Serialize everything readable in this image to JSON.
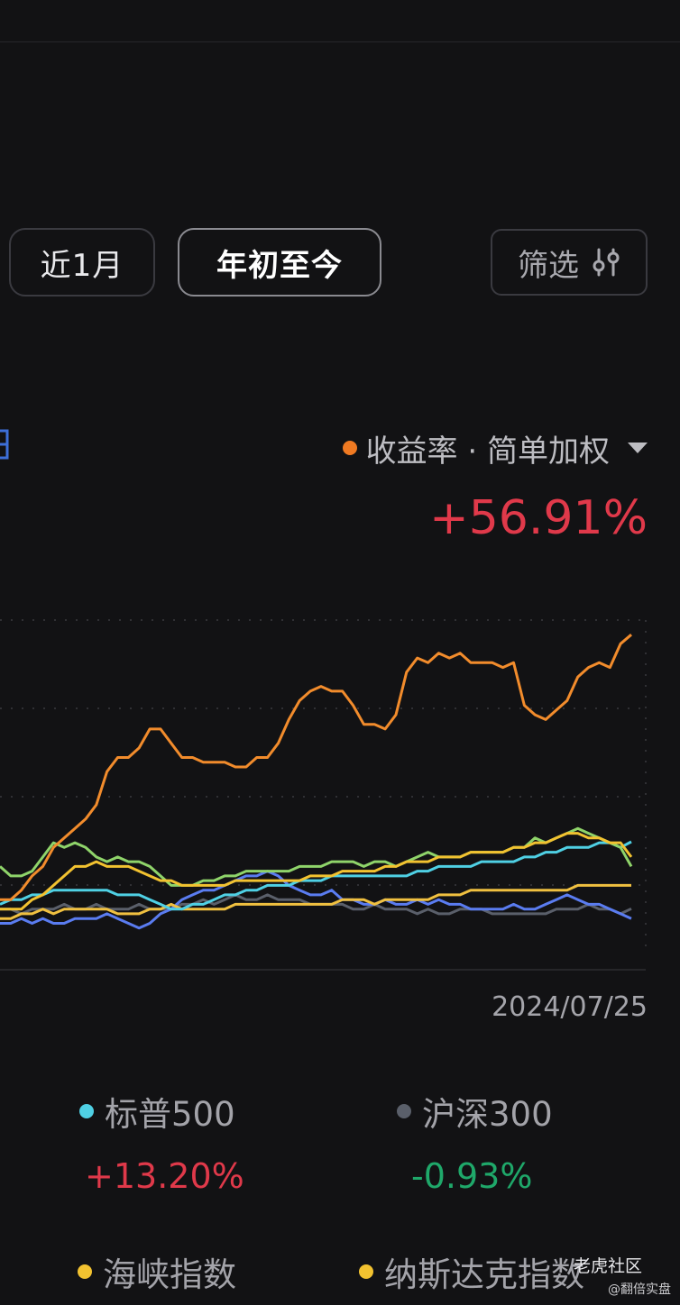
{
  "tabs": [
    {
      "label": "近1月",
      "active": false
    },
    {
      "label": "年初至今",
      "active": true
    }
  ],
  "filter_label": "筛选",
  "metric_selector": {
    "label": "收益率 · 简单加权",
    "dot_color": "#f07a22"
  },
  "main_return": "+56.91%",
  "chart_data": {
    "type": "line",
    "end_date": "2024/07/25",
    "grid": true,
    "series": [
      {
        "color": "#f28c2c",
        "values": [
          1,
          1,
          3,
          6,
          8,
          12,
          14,
          16,
          18,
          21,
          28,
          31,
          31,
          33,
          37,
          37,
          34,
          31,
          31,
          30,
          30,
          30,
          29,
          29,
          31,
          31,
          34,
          39,
          43,
          45,
          46,
          45,
          45,
          42,
          38,
          38,
          37,
          40,
          49,
          52,
          51,
          53,
          52,
          53,
          51,
          51,
          51,
          50,
          51,
          42,
          40,
          39,
          41,
          43,
          48,
          50,
          51,
          50,
          55,
          56.91
        ]
      },
      {
        "color": "#8fd46a",
        "values": [
          8,
          6,
          6,
          7,
          10,
          13,
          12,
          13,
          12,
          10,
          9,
          10,
          9,
          9,
          8,
          6,
          4,
          4,
          4,
          5,
          5,
          6,
          6,
          7,
          7,
          7,
          7,
          7,
          8,
          8,
          8,
          9,
          9,
          9,
          8,
          9,
          9,
          8,
          9,
          10,
          11,
          10,
          10,
          10,
          11,
          11,
          11,
          11,
          12,
          12,
          14,
          13,
          14,
          15,
          16,
          15,
          14,
          13,
          12,
          8
        ]
      },
      {
        "color": "#4fd0e4",
        "values": [
          0,
          1,
          1,
          2,
          2,
          3,
          3,
          3,
          3,
          3,
          3,
          2,
          2,
          2,
          1,
          0,
          -1,
          -1,
          0,
          0,
          1,
          2,
          2,
          3,
          3,
          4,
          4,
          4,
          5,
          5,
          5,
          6,
          6,
          6,
          6,
          6,
          6,
          6,
          6,
          7,
          7,
          8,
          8,
          8,
          8,
          9,
          9,
          9,
          9,
          10,
          10,
          11,
          11,
          12,
          12,
          12,
          13,
          13,
          12,
          13.2
        ]
      },
      {
        "color": "#5a7cf0",
        "values": [
          -4,
          -4,
          -3,
          -4,
          -3,
          -4,
          -4,
          -3,
          -3,
          -3,
          -2,
          -3,
          -4,
          -5,
          -4,
          -2,
          -1,
          1,
          2,
          3,
          3,
          4,
          5,
          6,
          6,
          7,
          6,
          4,
          3,
          2,
          2,
          3,
          1,
          1,
          0,
          0,
          1,
          0,
          0,
          1,
          0,
          1,
          0,
          0,
          -1,
          -1,
          -1,
          -1,
          0,
          -1,
          -1,
          0,
          1,
          2,
          1,
          0,
          0,
          -1,
          -2,
          -3
        ]
      },
      {
        "color": "#5a5f6a",
        "values": [
          -1,
          -1,
          -2,
          -1,
          -1,
          -1,
          0,
          -1,
          -1,
          0,
          -1,
          -1,
          -1,
          0,
          -1,
          -1,
          -1,
          0,
          0,
          1,
          0,
          1,
          2,
          1,
          1,
          2,
          1,
          1,
          1,
          0,
          0,
          0,
          0,
          -1,
          -1,
          0,
          -1,
          -1,
          -1,
          -2,
          -1,
          -2,
          -2,
          -1,
          -1,
          -1,
          -2,
          -2,
          -2,
          -2,
          -2,
          -2,
          -1,
          -1,
          -1,
          0,
          -1,
          -1,
          -2,
          -0.93
        ]
      },
      {
        "color": "#f0c040",
        "values": [
          -3,
          -3,
          -2,
          -2,
          -1,
          -2,
          -1,
          -1,
          -1,
          -1,
          -1,
          -2,
          -2,
          -2,
          -1,
          -1,
          0,
          -1,
          -1,
          -1,
          -1,
          -1,
          0,
          0,
          0,
          0,
          0,
          0,
          0,
          0,
          0,
          0,
          1,
          1,
          1,
          0,
          1,
          1,
          1,
          1,
          1,
          2,
          2,
          2,
          3,
          3,
          3,
          3,
          3,
          3,
          3,
          3,
          3,
          3,
          4,
          4,
          4,
          4,
          4,
          4
        ]
      },
      {
        "color": "#f2c230",
        "values": [
          -1,
          -1,
          -1,
          1,
          2,
          4,
          6,
          8,
          8,
          9,
          8,
          8,
          8,
          7,
          6,
          5,
          5,
          4,
          4,
          4,
          4,
          4,
          5,
          5,
          5,
          5,
          5,
          5,
          5,
          6,
          6,
          6,
          7,
          7,
          7,
          7,
          8,
          8,
          9,
          9,
          9,
          10,
          10,
          10,
          11,
          11,
          11,
          11,
          12,
          12,
          13,
          13,
          14,
          15,
          15,
          14,
          14,
          13,
          13,
          10
        ]
      }
    ]
  },
  "legend": [
    {
      "label": "标普500",
      "value": "+13.20%",
      "dot": "#4fd0e4",
      "sign": "pos"
    },
    {
      "label": "沪深300",
      "value": "-0.93%",
      "dot": "#5a5f6a",
      "sign": "neg"
    },
    {
      "label": "海峡指数",
      "value": "",
      "dot": "#f2c230",
      "sign": "pos"
    },
    {
      "label": "纳斯达克指数",
      "value": "",
      "dot": "#f2c230",
      "sign": "pos"
    }
  ],
  "watermark": {
    "title": "老虎社区",
    "subtitle": "@翻倍实盘"
  }
}
